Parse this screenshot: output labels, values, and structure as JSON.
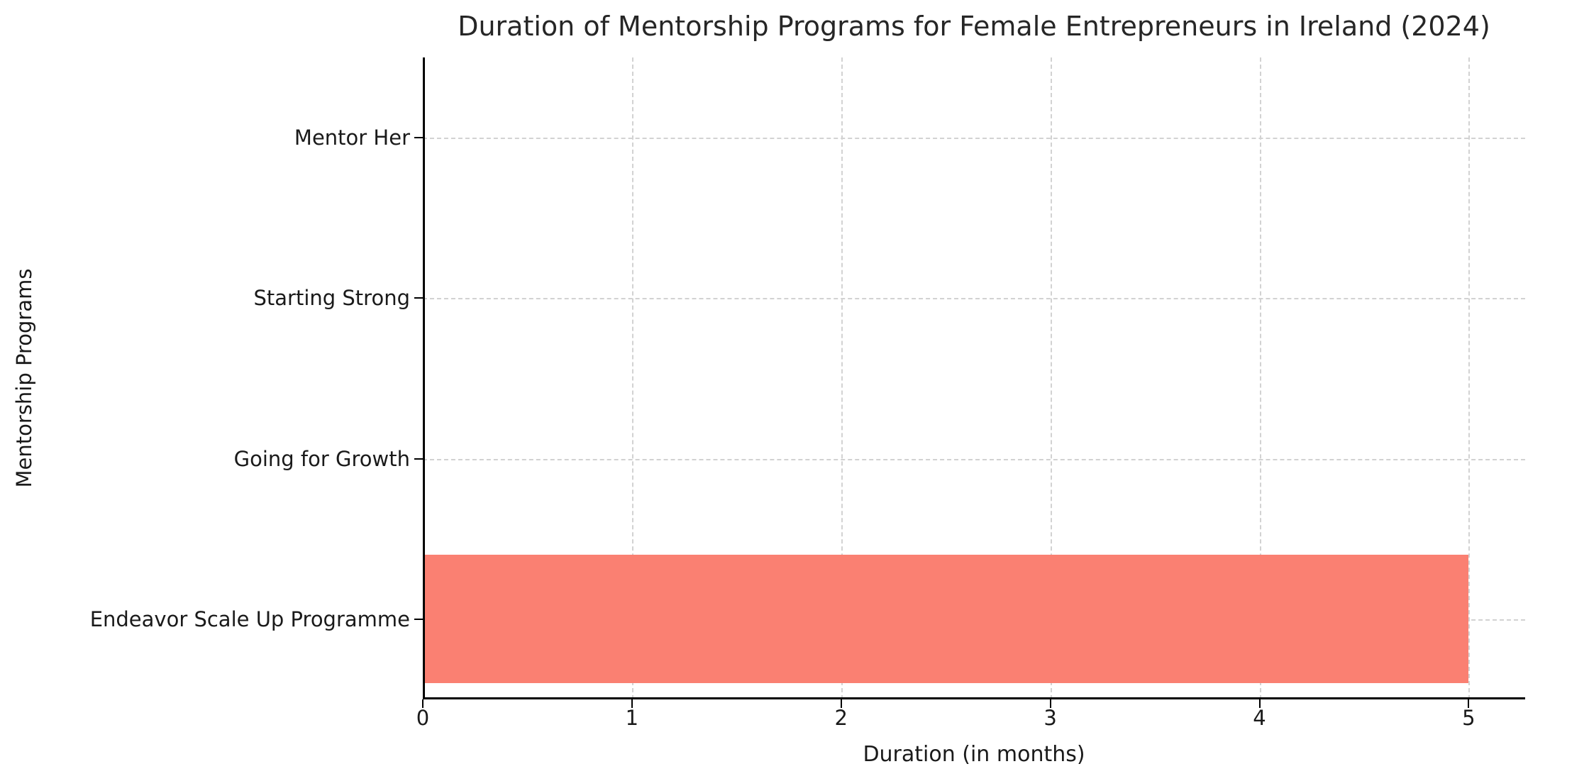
{
  "chart_data": {
    "type": "bar",
    "orientation": "horizontal",
    "title": "Duration of Mentorship Programs for Female Entrepreneurs in Ireland (2024)",
    "xlabel": "Duration (in months)",
    "ylabel": "Mentorship Programs",
    "categories": [
      "Mentor Her",
      "Starting Strong",
      "Going for Growth",
      "Endeavor Scale Up Programme"
    ],
    "values": [
      0,
      0,
      0,
      5
    ],
    "x_ticks": [
      0,
      1,
      2,
      3,
      4,
      5
    ],
    "xlim": [
      0,
      5.27
    ],
    "bar_color": "#FA8072",
    "grid": "dashed",
    "grid_color": "#d2d2d2",
    "axis_color": "#000000",
    "text_color": "#262626",
    "background_color": "#ffffff",
    "legend": "none",
    "bar_height_fraction": 0.8
  }
}
